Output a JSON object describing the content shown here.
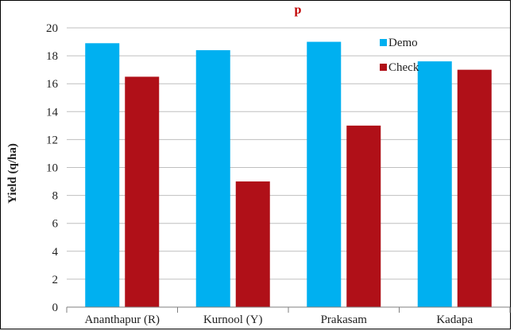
{
  "chart_data": {
    "type": "bar",
    "title": "p",
    "xlabel": "",
    "ylabel": "Yield (q/ha)",
    "ylim": [
      0,
      20
    ],
    "yticks": [
      0,
      2,
      4,
      6,
      8,
      10,
      12,
      14,
      16,
      18,
      20
    ],
    "categories": [
      "Ananthapur (R)",
      "Kurnool (Y)",
      "Prakasam",
      "Kadapa"
    ],
    "series": [
      {
        "name": "Demo",
        "values": [
          18.9,
          18.4,
          19.0,
          17.6
        ],
        "color": "#00B0F0"
      },
      {
        "name": "Check",
        "values": [
          16.5,
          9.0,
          13.0,
          17.0
        ],
        "color": "#B01018"
      }
    ],
    "grid": true,
    "legend": "top-right",
    "colors": {
      "title": "#C00000",
      "grid": "#BFBFBF",
      "axis": "#7F7F7F",
      "frame": "#000000"
    }
  }
}
